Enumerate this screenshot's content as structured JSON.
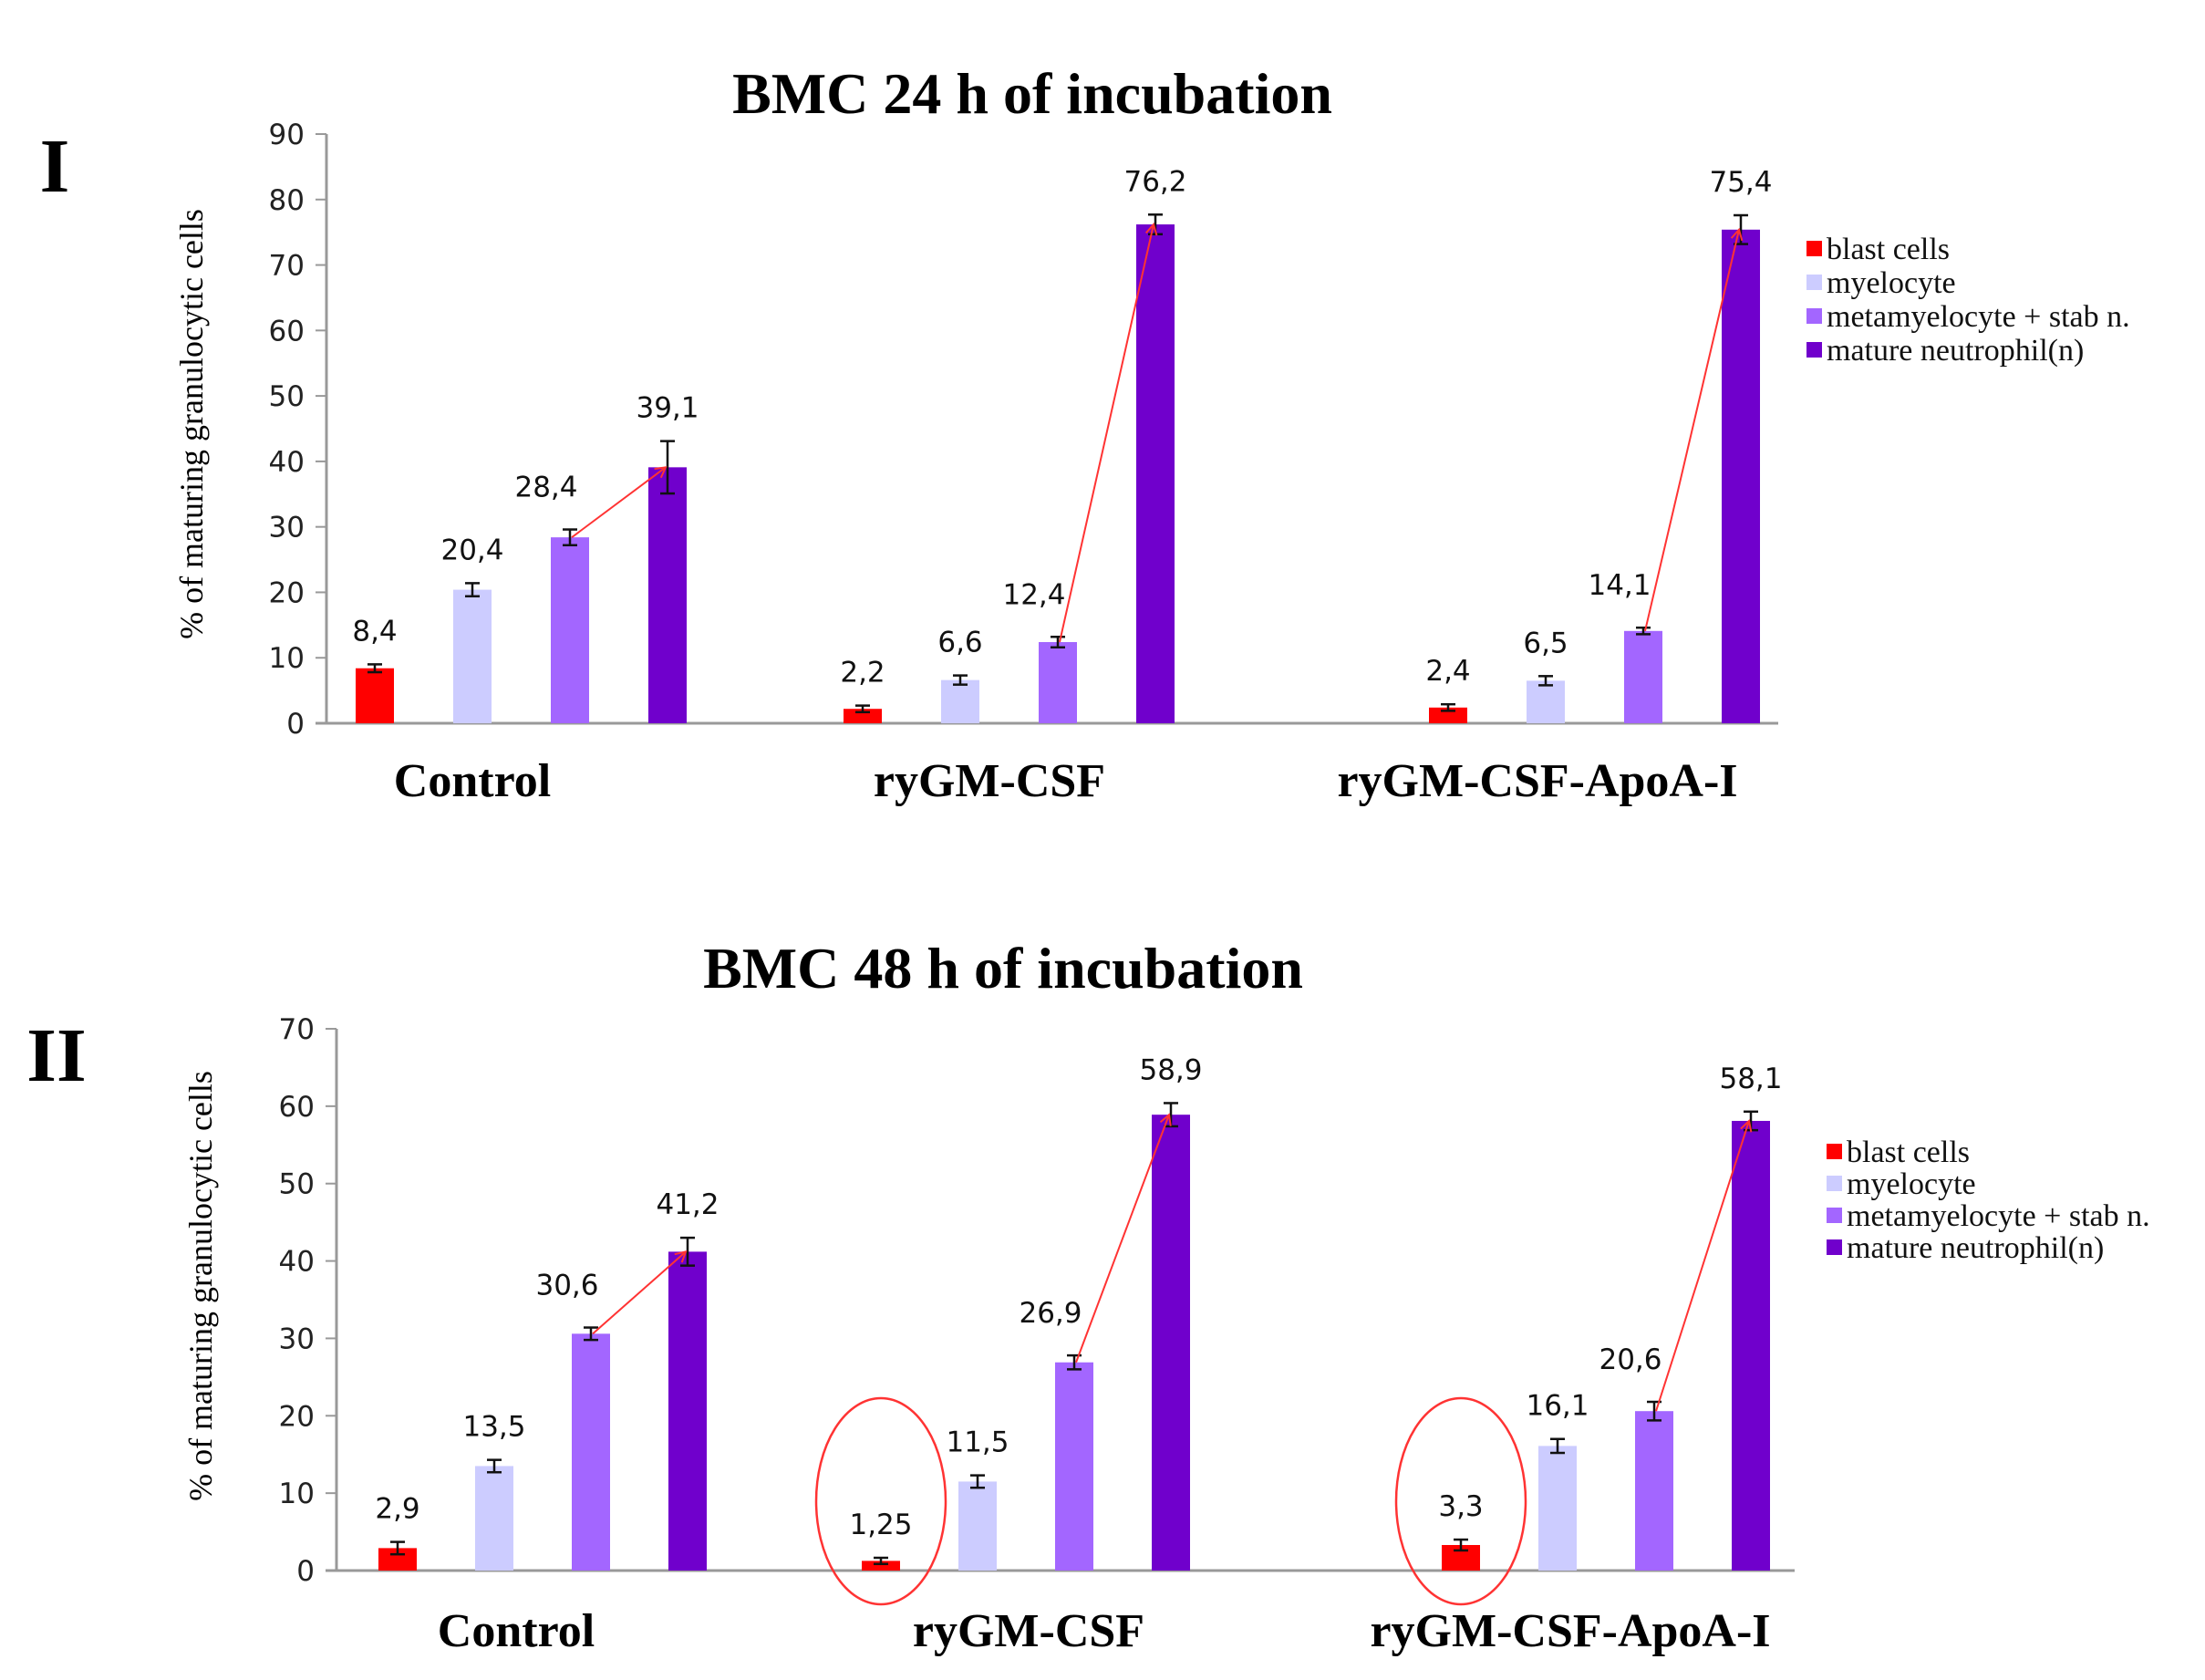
{
  "chart_data": [
    {
      "type": "bar",
      "panel_label": "I",
      "title": "BMC 24 h of incubation",
      "ylabel": "% of maturing  granulocytic  cells",
      "xlabel": "",
      "ylim": [
        0,
        90
      ],
      "yticks": [
        "0",
        "10",
        "20",
        "30",
        "40",
        "50",
        "60",
        "70",
        "80",
        "90"
      ],
      "categories": [
        "Control",
        "ryGM-CSF",
        "ryGM-CSF-ApoA-I"
      ],
      "legend_position": "right",
      "series": [
        {
          "name": "blast cells",
          "color": "#ff0000",
          "values": [
            8.4,
            2.2,
            2.4
          ],
          "errors": [
            0.6,
            0.5,
            0.5
          ],
          "labels": [
            "8,4",
            "2,2",
            "2,4"
          ]
        },
        {
          "name": "myelocyte",
          "color": "#ccccff",
          "values": [
            20.4,
            6.6,
            6.5
          ],
          "errors": [
            1.0,
            0.7,
            0.7
          ],
          "labels": [
            "20,4",
            "6,6",
            "6,5"
          ]
        },
        {
          "name": "metamyelocyte + stab n.",
          "color": "#a366ff",
          "values": [
            28.4,
            12.4,
            14.1
          ],
          "errors": [
            1.2,
            0.8,
            0.5
          ],
          "labels": [
            "28,4",
            "12,4",
            "14,1"
          ]
        },
        {
          "name": "mature neutrophil(n)",
          "color": "#7000cc",
          "values": [
            39.1,
            76.2,
            75.4
          ],
          "errors": [
            4.0,
            1.5,
            2.2
          ],
          "labels": [
            "39,1",
            "76,2",
            "75,4"
          ]
        }
      ],
      "annotations": [
        "red arrows from metamyelocyte + stab n. to mature neutrophil(n) in each group"
      ]
    },
    {
      "type": "bar",
      "panel_label": "II",
      "title": "BMC 48 h of incubation",
      "ylabel": "% of maturing  granulocytic  cells",
      "xlabel": "",
      "ylim": [
        0,
        70
      ],
      "yticks": [
        "0",
        "10",
        "20",
        "30",
        "40",
        "50",
        "60",
        "70"
      ],
      "categories": [
        "Control",
        "ryGM-CSF",
        "ryGM-CSF-ApoA-I"
      ],
      "legend_position": "right",
      "series": [
        {
          "name": "blast cells",
          "color": "#ff0000",
          "values": [
            2.9,
            1.25,
            3.3
          ],
          "errors": [
            0.8,
            0.4,
            0.7
          ],
          "labels": [
            "2,9",
            "1,25",
            "3,3"
          ]
        },
        {
          "name": "myelocyte",
          "color": "#ccccff",
          "values": [
            13.5,
            11.5,
            16.1
          ],
          "errors": [
            0.8,
            0.8,
            0.9
          ],
          "labels": [
            "13,5",
            "11,5",
            "16,1"
          ]
        },
        {
          "name": "metamyelocyte + stab n.",
          "color": "#a366ff",
          "values": [
            30.6,
            26.9,
            20.6
          ],
          "errors": [
            0.8,
            0.9,
            1.2
          ],
          "labels": [
            "30,6",
            "26,9",
            "20,6"
          ]
        },
        {
          "name": "mature neutrophil(n)",
          "color": "#7000cc",
          "values": [
            41.2,
            58.9,
            58.1
          ],
          "errors": [
            1.8,
            1.5,
            1.2
          ],
          "labels": [
            "41,2",
            "58,9",
            "58,1"
          ]
        }
      ],
      "annotations": [
        "red arrows from metamyelocyte + stab n. to mature neutrophil(n) in each group",
        "red circles around blast cells in ryGM-CSF and ryGM-CSF-ApoA-I"
      ]
    }
  ]
}
